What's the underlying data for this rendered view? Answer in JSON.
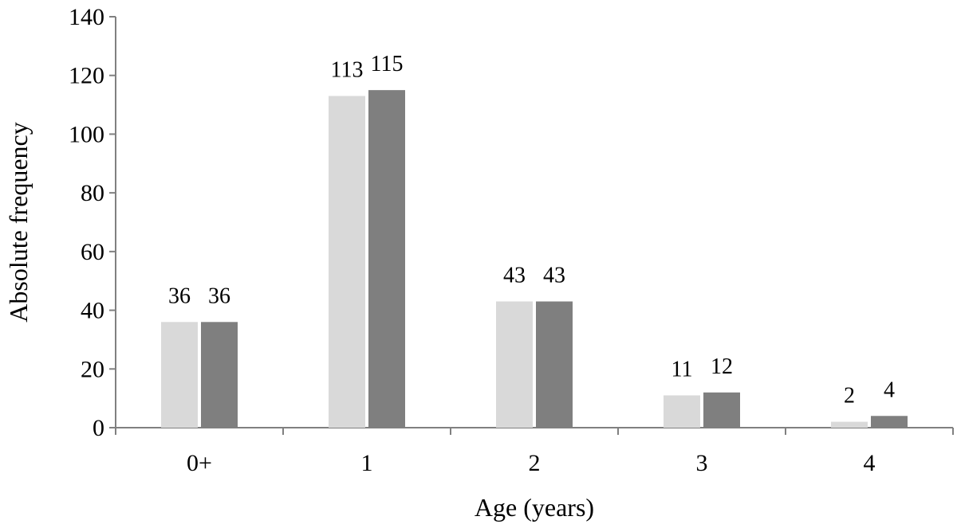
{
  "chart_data": {
    "type": "bar",
    "title": "",
    "xlabel": "Age (years)",
    "ylabel": "Absolute frequency",
    "categories": [
      "0+",
      "1",
      "2",
      "3",
      "4"
    ],
    "series": [
      {
        "values": [
          36,
          113,
          43,
          11,
          2
        ],
        "color": "#d9d9d9",
        "labels": [
          "36",
          "113",
          "43",
          "11",
          "2"
        ]
      },
      {
        "values": [
          36,
          115,
          43,
          12,
          4
        ],
        "color": "#7f7f7f",
        "labels": [
          "36",
          "115",
          "43",
          "12",
          "4"
        ]
      }
    ],
    "ylim": [
      0,
      140
    ],
    "yticks": [
      "0",
      "20",
      "40",
      "60",
      "80",
      "100",
      "120",
      "140"
    ],
    "grid": false,
    "legend": "none"
  }
}
